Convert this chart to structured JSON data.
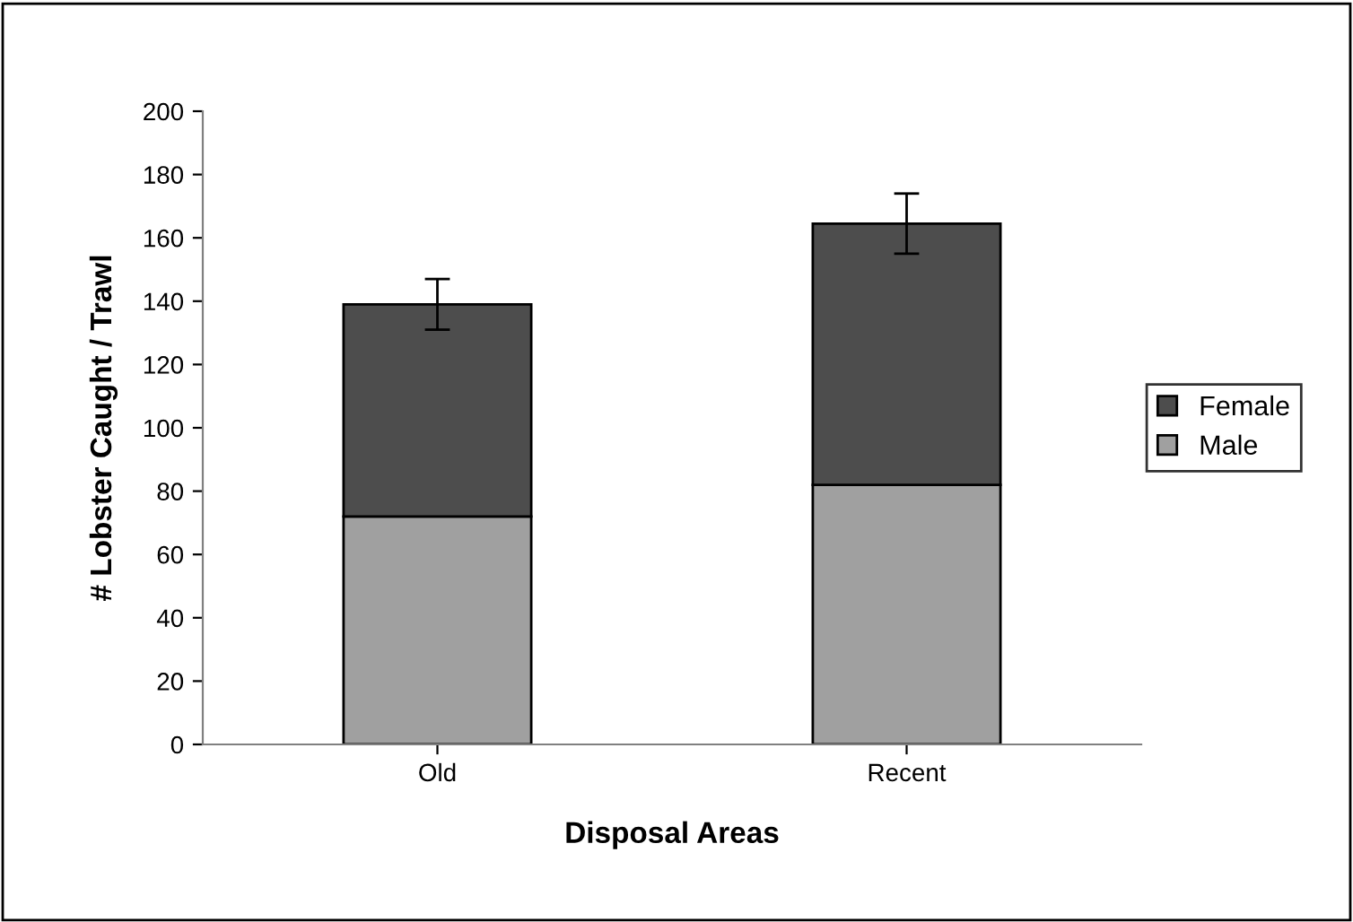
{
  "chart_data": {
    "type": "bar",
    "stacked": true,
    "xlabel": "Disposal Areas",
    "ylabel": "# Lobster Caught / Trawl",
    "categories": [
      "Old",
      "Recent"
    ],
    "series": [
      {
        "name": "Male",
        "color": "#a0a0a0",
        "values": [
          72,
          82
        ]
      },
      {
        "name": "Female",
        "color": "#4d4d4d",
        "values": [
          67,
          82.5
        ],
        "errors": [
          8,
          9.5
        ]
      }
    ],
    "ylim": [
      0,
      200
    ],
    "yticks": [
      0,
      20,
      40,
      60,
      80,
      100,
      120,
      140,
      160,
      180,
      200
    ],
    "grid": false,
    "legend": "right"
  }
}
